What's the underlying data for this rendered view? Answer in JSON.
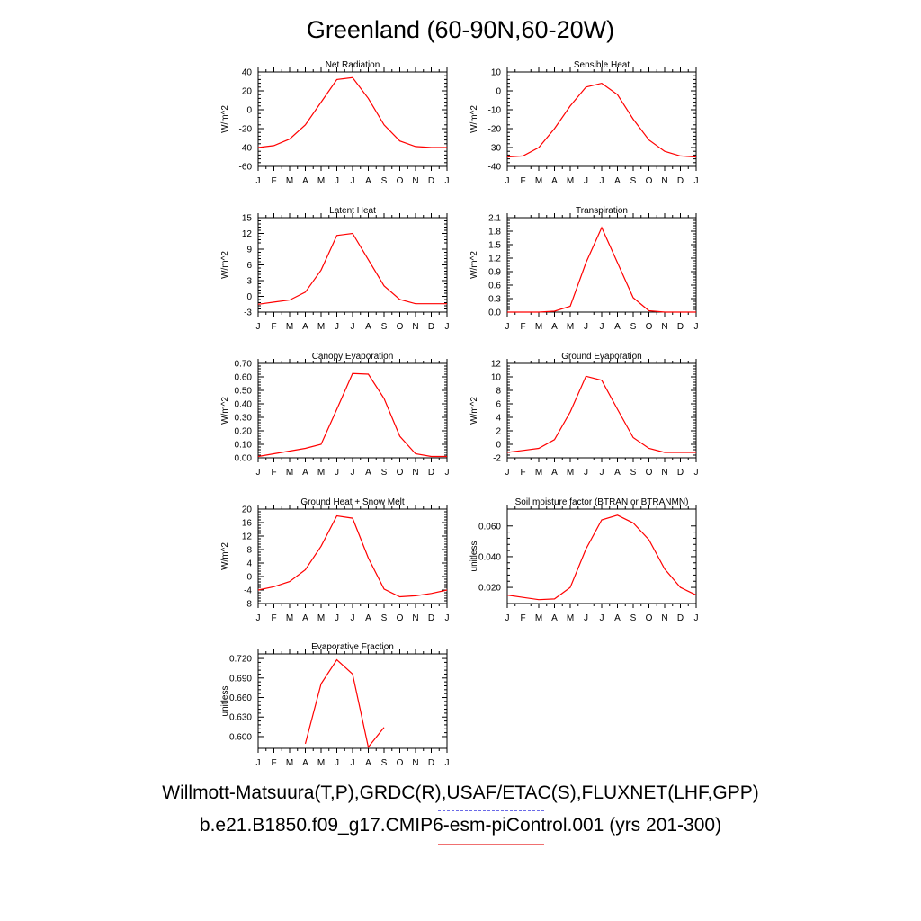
{
  "title": "Greenland (60-90N,60-20W)",
  "footer": {
    "obs_line": "Willmott-Matsuura(T,P),GRDC(R),USAF/ETAC(S),FLUXNET(LHF,GPP)",
    "case_line": "b.e21.B1850.f09_g17.CMIP6-esm-piControl.001 (yrs 201-300)"
  },
  "colors": {
    "series": "#ff0000",
    "obs_dash": "#6a6ae8",
    "case_line": "#f07070",
    "axis": "#000000"
  },
  "month_labels": [
    "J",
    "F",
    "M",
    "A",
    "M",
    "J",
    "J",
    "A",
    "S",
    "O",
    "N",
    "D",
    "J"
  ],
  "chart_data": [
    {
      "type": "line",
      "title": "Net Radiation",
      "ylabel": "W/m^2",
      "ylim": [
        -60,
        40
      ],
      "yticks": [
        -60,
        -40,
        -20,
        0,
        20,
        40
      ],
      "ytick_labels": [
        "-60",
        "-40",
        "-20",
        "0",
        "20",
        "40"
      ],
      "x": [
        0,
        1,
        2,
        3,
        4,
        5,
        6,
        7,
        8,
        9,
        10,
        11,
        12
      ],
      "series": [
        {
          "values": [
            -40,
            -38,
            -31,
            -16,
            8,
            32,
            34,
            12,
            -16,
            -33,
            -39,
            -40,
            -40
          ]
        }
      ]
    },
    {
      "type": "line",
      "title": "Sensible Heat",
      "ylabel": "W/m^2",
      "ylim": [
        -40,
        10
      ],
      "yticks": [
        -40,
        -30,
        -20,
        -10,
        0,
        10
      ],
      "ytick_labels": [
        "-40",
        "-30",
        "-20",
        "-10",
        "0",
        "10"
      ],
      "x": [
        0,
        1,
        2,
        3,
        4,
        5,
        6,
        7,
        8,
        9,
        10,
        11,
        12
      ],
      "series": [
        {
          "values": [
            -35,
            -34.5,
            -30,
            -20,
            -8,
            2,
            4,
            -2,
            -15,
            -26,
            -32,
            -34.5,
            -35
          ]
        }
      ]
    },
    {
      "type": "line",
      "title": "Latent Heat",
      "ylabel": "W/m^2",
      "ylim": [
        -3,
        15
      ],
      "yticks": [
        -3,
        0,
        3,
        6,
        9,
        12,
        15
      ],
      "ytick_labels": [
        "-3",
        "0",
        "3",
        "6",
        "9",
        "12",
        "15"
      ],
      "x": [
        0,
        1,
        2,
        3,
        4,
        5,
        6,
        7,
        8,
        9,
        10,
        11,
        12
      ],
      "series": [
        {
          "values": [
            -1.5,
            -1.1,
            -0.7,
            0.8,
            5,
            11.6,
            12,
            7,
            2,
            -0.6,
            -1.4,
            -1.4,
            -1.4
          ]
        }
      ]
    },
    {
      "type": "line",
      "title": "Transpiration",
      "ylabel": "W/m^2",
      "ylim": [
        0,
        2.1
      ],
      "yticks": [
        0,
        0.3,
        0.6,
        0.9,
        1.2,
        1.5,
        1.8,
        2.1
      ],
      "ytick_labels": [
        "0.0",
        "0.3",
        "0.6",
        "0.9",
        "1.2",
        "1.5",
        "1.8",
        "2.1"
      ],
      "x": [
        0,
        1,
        2,
        3,
        4,
        5,
        6,
        7,
        8,
        9,
        10,
        11,
        12
      ],
      "series": [
        {
          "values": [
            0,
            0,
            0,
            0.02,
            0.13,
            1.1,
            1.88,
            1.1,
            0.32,
            0.03,
            0,
            0,
            0
          ]
        }
      ]
    },
    {
      "type": "line",
      "title": "Canopy Evaporation",
      "ylabel": "W/m^2",
      "ylim": [
        0,
        0.7
      ],
      "yticks": [
        0,
        0.1,
        0.2,
        0.3,
        0.4,
        0.5,
        0.6,
        0.7
      ],
      "ytick_labels": [
        "0.00",
        "0.10",
        "0.20",
        "0.30",
        "0.40",
        "0.50",
        "0.60",
        "0.70"
      ],
      "x": [
        0,
        1,
        2,
        3,
        4,
        5,
        6,
        7,
        8,
        9,
        10,
        11,
        12
      ],
      "series": [
        {
          "values": [
            0.01,
            0.03,
            0.05,
            0.07,
            0.1,
            0.36,
            0.625,
            0.62,
            0.44,
            0.16,
            0.03,
            0.01,
            0.01
          ]
        }
      ]
    },
    {
      "type": "line",
      "title": "Ground Evaporation",
      "ylabel": "W/m^2",
      "ylim": [
        -2,
        12
      ],
      "yticks": [
        -2,
        0,
        2,
        4,
        6,
        8,
        10,
        12
      ],
      "ytick_labels": [
        "-2",
        "0",
        "2",
        "4",
        "6",
        "8",
        "10",
        "12"
      ],
      "x": [
        0,
        1,
        2,
        3,
        4,
        5,
        6,
        7,
        8,
        9,
        10,
        11,
        12
      ],
      "series": [
        {
          "values": [
            -1.2,
            -0.9,
            -0.6,
            0.7,
            4.8,
            10.1,
            9.5,
            5.2,
            1,
            -0.6,
            -1.2,
            -1.2,
            -1.2
          ]
        }
      ]
    },
    {
      "type": "line",
      "title": "Ground Heat + Snow Melt",
      "ylabel": "W/m^2",
      "ylim": [
        -8,
        20
      ],
      "yticks": [
        -8,
        -4,
        0,
        4,
        8,
        12,
        16,
        20
      ],
      "ytick_labels": [
        "-8",
        "-4",
        "0",
        "4",
        "8",
        "12",
        "16",
        "20"
      ],
      "x": [
        0,
        1,
        2,
        3,
        4,
        5,
        6,
        7,
        8,
        9,
        10,
        11,
        12
      ],
      "series": [
        {
          "values": [
            -4,
            -3,
            -1.5,
            2,
            9,
            18,
            17.3,
            5.5,
            -3.7,
            -6,
            -5.7,
            -5,
            -4
          ]
        }
      ]
    },
    {
      "type": "line",
      "title": "Soil moisture factor (BTRAN or BTRANMN)",
      "ylabel": "unitless",
      "ylim": [
        0.0095,
        0.071
      ],
      "yticks": [
        0.02,
        0.04,
        0.06
      ],
      "ytick_labels": [
        "0.020",
        "0.040",
        "0.060"
      ],
      "x": [
        0,
        1,
        2,
        3,
        4,
        5,
        6,
        7,
        8,
        9,
        10,
        11,
        12
      ],
      "series": [
        {
          "values": [
            0.015,
            0.0135,
            0.012,
            0.0125,
            0.02,
            0.045,
            0.064,
            0.067,
            0.062,
            0.051,
            0.032,
            0.02,
            0.015
          ]
        }
      ]
    },
    {
      "type": "line",
      "title": "Evaporative Fraction",
      "ylabel": "unitless",
      "ylim": [
        0.582,
        0.727
      ],
      "yticks": [
        0.6,
        0.63,
        0.66,
        0.69,
        0.72
      ],
      "ytick_labels": [
        "0.600",
        "0.630",
        "0.660",
        "0.690",
        "0.720"
      ],
      "x": [
        0,
        1,
        2,
        3,
        4,
        5,
        6,
        7,
        8,
        9,
        10,
        11,
        12
      ],
      "series": [
        {
          "values": [
            null,
            null,
            null,
            0.589,
            0.681,
            0.718,
            0.696,
            0.584,
            0.614,
            null,
            null,
            null,
            null
          ]
        }
      ]
    }
  ]
}
